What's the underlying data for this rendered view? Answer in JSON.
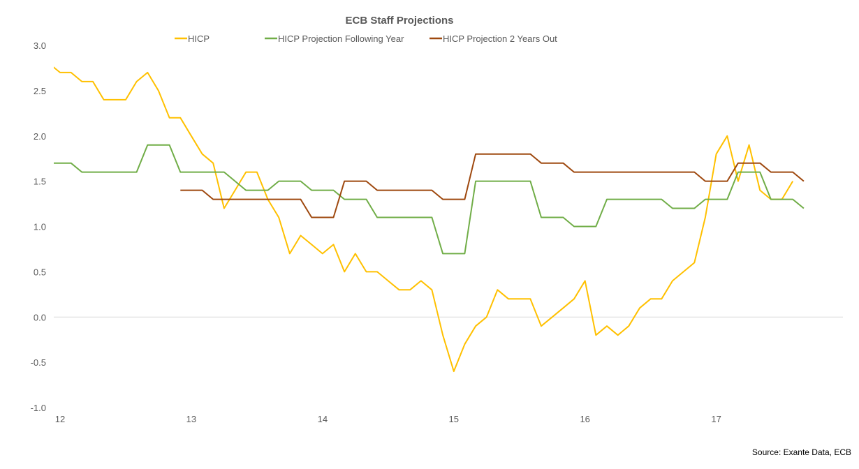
{
  "chart_data": {
    "type": "line",
    "title": "ECB Staff Projections",
    "source": "Source: Exante Data, ECB",
    "xlabel": "",
    "ylabel": "",
    "ylim": [
      -1.0,
      3.0
    ],
    "y_ticks": [
      "3.0",
      "2.5",
      "2.0",
      "1.5",
      "1.0",
      "0.5",
      "0.0",
      "-0.5",
      "-1.0"
    ],
    "y_tick_values": [
      3.0,
      2.5,
      2.0,
      1.5,
      1.0,
      0.5,
      0.0,
      -0.5,
      -1.0
    ],
    "x_tick_labels": [
      "12",
      "13",
      "14",
      "15",
      "16",
      "17"
    ],
    "x_tick_dates": [
      "2012-01",
      "2013-01",
      "2014-01",
      "2015-01",
      "2016-01",
      "2017-01"
    ],
    "grid": "zero line only",
    "legend_position": "top",
    "x": [
      "2011-12",
      "2012-01",
      "2012-02",
      "2012-03",
      "2012-04",
      "2012-05",
      "2012-06",
      "2012-07",
      "2012-08",
      "2012-09",
      "2012-10",
      "2012-11",
      "2012-12",
      "2013-01",
      "2013-02",
      "2013-03",
      "2013-04",
      "2013-05",
      "2013-06",
      "2013-07",
      "2013-08",
      "2013-09",
      "2013-10",
      "2013-11",
      "2013-12",
      "2014-01",
      "2014-02",
      "2014-03",
      "2014-04",
      "2014-05",
      "2014-06",
      "2014-07",
      "2014-08",
      "2014-09",
      "2014-10",
      "2014-11",
      "2014-12",
      "2015-01",
      "2015-02",
      "2015-03",
      "2015-04",
      "2015-05",
      "2015-06",
      "2015-07",
      "2015-08",
      "2015-09",
      "2015-10",
      "2015-11",
      "2015-12",
      "2016-01",
      "2016-02",
      "2016-03",
      "2016-04",
      "2016-05",
      "2016-06",
      "2016-07",
      "2016-08",
      "2016-09",
      "2016-10",
      "2016-11",
      "2016-12",
      "2017-01",
      "2017-02",
      "2017-03",
      "2017-04",
      "2017-05",
      "2017-06",
      "2017-07",
      "2017-08",
      "2017-09"
    ],
    "series": [
      {
        "name": "HICP",
        "color": "#FFC000",
        "values": [
          2.8,
          2.7,
          2.7,
          2.6,
          2.6,
          2.4,
          2.4,
          2.4,
          2.6,
          2.7,
          2.5,
          2.2,
          2.2,
          2.0,
          1.8,
          1.7,
          1.2,
          1.4,
          1.6,
          1.6,
          1.3,
          1.1,
          0.7,
          0.9,
          0.8,
          0.7,
          0.8,
          0.5,
          0.7,
          0.5,
          0.5,
          0.4,
          0.3,
          0.3,
          0.4,
          0.3,
          -0.2,
          -0.6,
          -0.3,
          -0.1,
          0.0,
          0.3,
          0.2,
          0.2,
          0.2,
          -0.1,
          0.0,
          0.1,
          0.2,
          0.4,
          -0.2,
          -0.1,
          -0.2,
          -0.1,
          0.1,
          0.2,
          0.2,
          0.4,
          0.5,
          0.6,
          1.1,
          1.8,
          2.0,
          1.5,
          1.9,
          1.4,
          1.3,
          1.3,
          1.5,
          null
        ]
      },
      {
        "name": "HICP Projection Following Year",
        "color": "#70AD47",
        "values": [
          1.7,
          1.7,
          1.7,
          1.6,
          1.6,
          1.6,
          1.6,
          1.6,
          1.6,
          1.9,
          1.9,
          1.9,
          1.6,
          1.6,
          1.6,
          1.6,
          1.6,
          1.5,
          1.4,
          1.4,
          1.4,
          1.5,
          1.5,
          1.5,
          1.4,
          1.4,
          1.4,
          1.3,
          1.3,
          1.3,
          1.1,
          1.1,
          1.1,
          1.1,
          1.1,
          1.1,
          0.7,
          0.7,
          0.7,
          1.5,
          1.5,
          1.5,
          1.5,
          1.5,
          1.5,
          1.1,
          1.1,
          1.1,
          1.0,
          1.0,
          1.0,
          1.3,
          1.3,
          1.3,
          1.3,
          1.3,
          1.3,
          1.2,
          1.2,
          1.2,
          1.3,
          1.3,
          1.3,
          1.6,
          1.6,
          1.6,
          1.3,
          1.3,
          1.3,
          1.2
        ]
      },
      {
        "name": "HICP Projection 2 Years Out",
        "color": "#9E480E",
        "values": [
          null,
          null,
          null,
          null,
          null,
          null,
          null,
          null,
          null,
          null,
          null,
          null,
          1.4,
          1.4,
          1.4,
          1.3,
          1.3,
          1.3,
          1.3,
          1.3,
          1.3,
          1.3,
          1.3,
          1.3,
          1.1,
          1.1,
          1.1,
          1.5,
          1.5,
          1.5,
          1.4,
          1.4,
          1.4,
          1.4,
          1.4,
          1.4,
          1.3,
          1.3,
          1.3,
          1.8,
          1.8,
          1.8,
          1.8,
          1.8,
          1.8,
          1.7,
          1.7,
          1.7,
          1.6,
          1.6,
          1.6,
          1.6,
          1.6,
          1.6,
          1.6,
          1.6,
          1.6,
          1.6,
          1.6,
          1.6,
          1.5,
          1.5,
          1.5,
          1.7,
          1.7,
          1.7,
          1.6,
          1.6,
          1.6,
          1.5
        ]
      }
    ],
    "text_color": "#595959",
    "zero_line_color": "#D9D9D9"
  }
}
